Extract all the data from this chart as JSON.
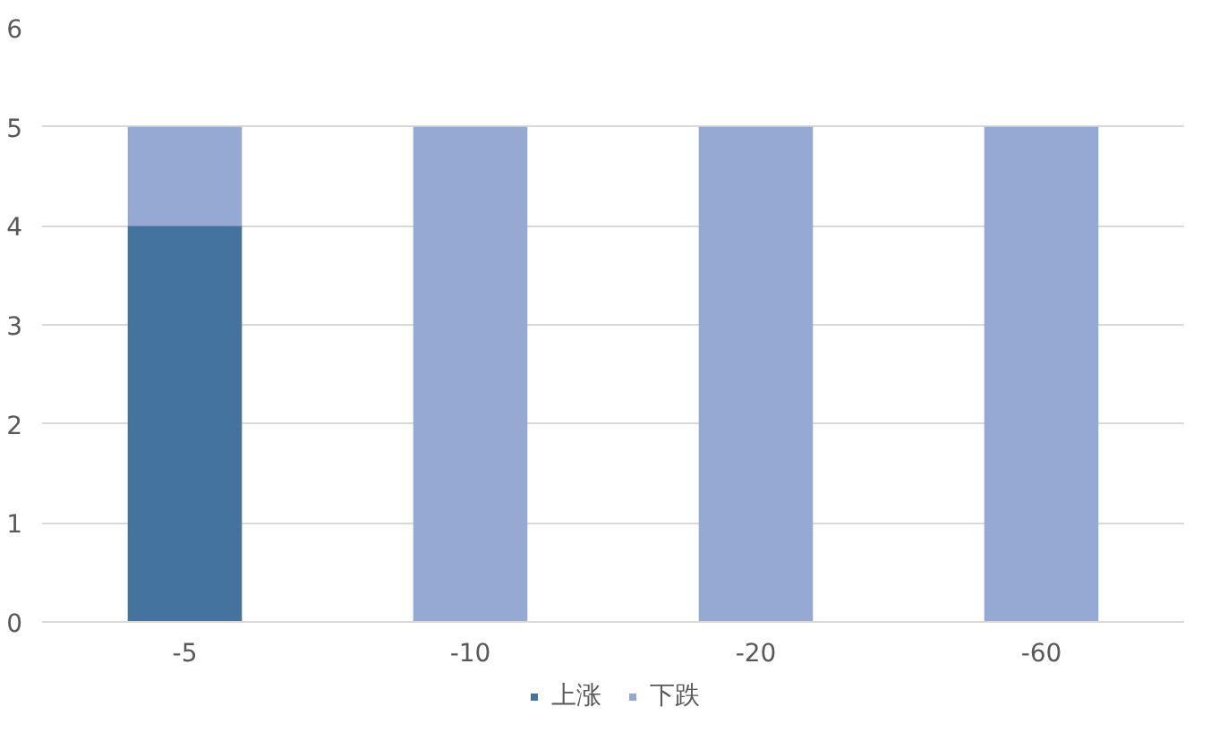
{
  "chart_data": {
    "type": "bar",
    "stacked": true,
    "categories": [
      "-5",
      "-10",
      "-20",
      "-60"
    ],
    "series": [
      {
        "name": "上涨",
        "color": "#44739f",
        "values": [
          4,
          0,
          0,
          0
        ]
      },
      {
        "name": "下跌",
        "color": "#95a9d2",
        "values": [
          1,
          5,
          5,
          5
        ]
      }
    ],
    "ylim": [
      0,
      6
    ],
    "yticks": [
      0,
      1,
      2,
      3,
      4,
      5,
      6
    ],
    "grid": "y",
    "legend": "bottom"
  }
}
